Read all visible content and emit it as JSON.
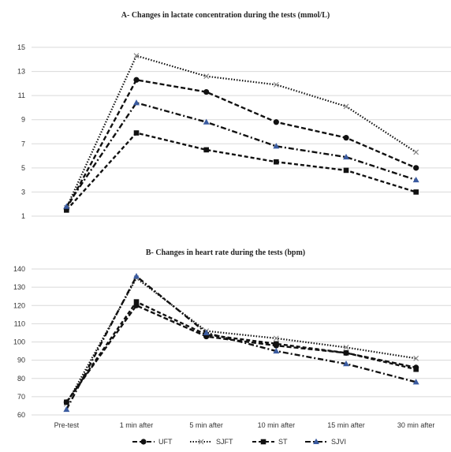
{
  "chart_data": [
    {
      "type": "line",
      "title": "A- Changes in lactate concentration during the tests (mmol/L)",
      "xlabel": "",
      "ylabel": "",
      "ylim": [
        1,
        15
      ],
      "yticks": [
        1,
        3,
        5,
        7,
        9,
        11,
        13,
        15
      ],
      "grid": true,
      "categories": [
        "Pre-test",
        "1 min after",
        "5 min after",
        "10 min after",
        "15 min after",
        "30 min after"
      ],
      "series": [
        {
          "name": "UFT",
          "values": [
            1.6,
            12.3,
            11.3,
            8.8,
            7.5,
            5.0
          ]
        },
        {
          "name": "SJFT",
          "values": [
            1.7,
            14.3,
            12.6,
            11.9,
            10.1,
            6.3
          ]
        },
        {
          "name": "ST",
          "values": [
            1.5,
            7.9,
            6.5,
            5.5,
            4.8,
            3.0
          ]
        },
        {
          "name": "SJVI",
          "values": [
            1.8,
            10.4,
            8.8,
            6.8,
            5.9,
            4.0
          ]
        }
      ]
    },
    {
      "type": "line",
      "title": "B- Changes in heart rate during the tests (bpm)",
      "xlabel": "",
      "ylabel": "",
      "ylim": [
        60,
        140
      ],
      "yticks": [
        60,
        70,
        80,
        90,
        100,
        110,
        120,
        130,
        140
      ],
      "grid": true,
      "categories": [
        "Pre-test",
        "1 min after",
        "5 min after",
        "10 min after",
        "15 min after",
        "30 min after"
      ],
      "series": [
        {
          "name": "UFT",
          "values": [
            67,
            120,
            103,
            98,
            94,
            86
          ]
        },
        {
          "name": "SJFT",
          "values": [
            66,
            135,
            106,
            102,
            97,
            91
          ]
        },
        {
          "name": "ST",
          "values": [
            67,
            122,
            104,
            99,
            94,
            85
          ]
        },
        {
          "name": "SJVI",
          "values": [
            63,
            136,
            105,
            95,
            88,
            78
          ]
        }
      ]
    }
  ],
  "legend": {
    "placement": "bottom",
    "items": [
      {
        "name": "UFT",
        "dash": "6,3",
        "marker": "circle"
      },
      {
        "name": "SJFT",
        "dash": "1.5,2",
        "marker": "x"
      },
      {
        "name": "ST",
        "dash": "5,3",
        "marker": "square"
      },
      {
        "name": "SJVI",
        "dash": "7,3,2,3",
        "marker": "triangle"
      }
    ]
  },
  "colors": {
    "line": "#111111",
    "grid": "#d9d9d9",
    "sjvi_marker": "#3a5ba0",
    "sjft_marker": "#888888"
  }
}
